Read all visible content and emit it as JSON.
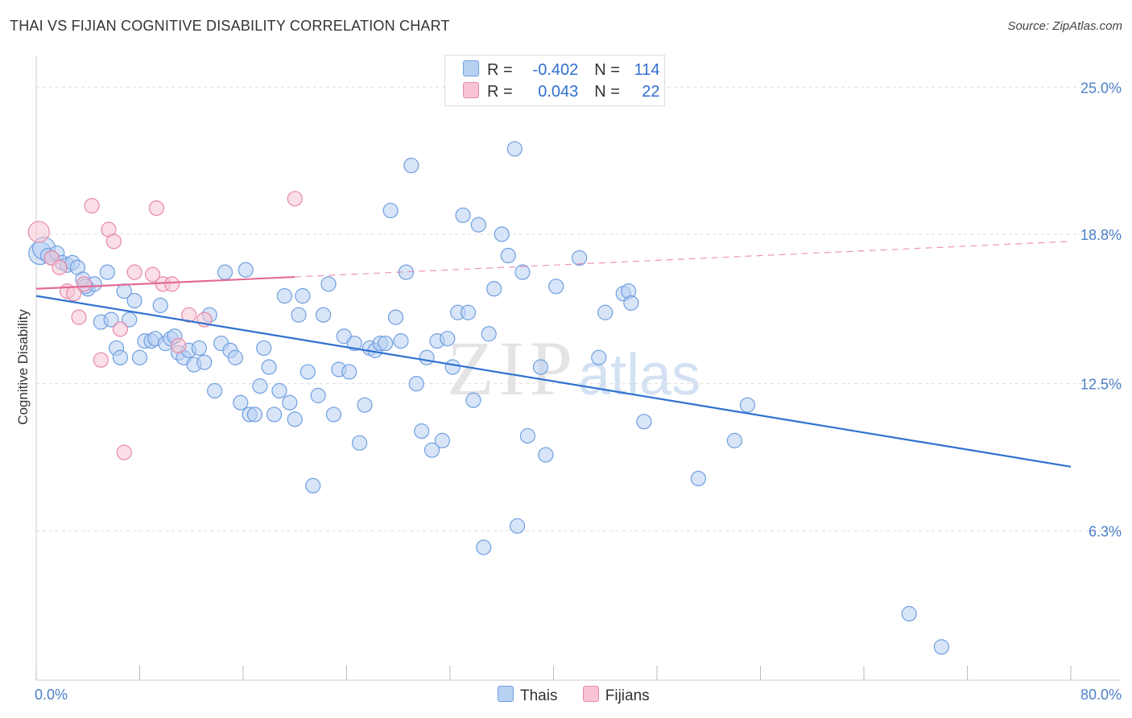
{
  "title": "THAI VS FIJIAN COGNITIVE DISABILITY CORRELATION CHART",
  "source": "Source: ZipAtlas.com",
  "watermark": {
    "zip": "ZIP",
    "atlas": "atlas"
  },
  "legend": {
    "rows": [
      {
        "r_label": "R =",
        "r_value": "-0.402",
        "n_label": "N =",
        "n_value": "114",
        "color": "#b8d0f2",
        "border": "#6f9fe0"
      },
      {
        "r_label": "R =",
        "r_value": "0.043",
        "n_label": "N =",
        "n_value": "22",
        "color": "#f8c4d4",
        "border": "#e888a8"
      }
    ]
  },
  "bottom_legend": [
    {
      "label": "Thais",
      "color": "#b8d0f2",
      "border": "#6f9fe0"
    },
    {
      "label": "Fijians",
      "color": "#f8c4d4",
      "border": "#e888a8"
    }
  ],
  "chart_data": {
    "type": "scatter",
    "title": "THAI VS FIJIAN COGNITIVE DISABILITY CORRELATION CHART",
    "xlabel": "",
    "ylabel": "Cognitive Disability",
    "xlim": [
      0,
      80
    ],
    "ylim": [
      0,
      26.3
    ],
    "x_tick_labels": [
      "0.0%",
      "80.0%"
    ],
    "y_ticks": [
      6.3,
      12.5,
      18.8,
      25.0
    ],
    "y_tick_labels": [
      "6.3%",
      "12.5%",
      "18.8%",
      "25.0%"
    ],
    "grid": true,
    "legend_position": "top-center",
    "series": [
      {
        "name": "Thais",
        "color": "#6f9fe0",
        "fill": "#b8d0f2",
        "trend": {
          "x": [
            0,
            80
          ],
          "y": [
            16.2,
            9.0
          ],
          "style": "solid",
          "color": "#2f72d0"
        },
        "points": [
          [
            0.3,
            18.0
          ],
          [
            0.6,
            18.2
          ],
          [
            0.9,
            17.9
          ],
          [
            1.2,
            17.8
          ],
          [
            1.6,
            18.0
          ],
          [
            2.0,
            17.6
          ],
          [
            2.4,
            17.5
          ],
          [
            2.8,
            17.6
          ],
          [
            3.2,
            17.4
          ],
          [
            3.6,
            16.9
          ],
          [
            4.0,
            16.5
          ],
          [
            4.5,
            16.7
          ],
          [
            5.0,
            15.1
          ],
          [
            5.5,
            17.2
          ],
          [
            5.8,
            15.2
          ],
          [
            6.2,
            14.0
          ],
          [
            6.5,
            13.6
          ],
          [
            6.8,
            16.4
          ],
          [
            7.2,
            15.2
          ],
          [
            7.6,
            16.0
          ],
          [
            8.0,
            13.6
          ],
          [
            8.4,
            14.3
          ],
          [
            8.9,
            14.3
          ],
          [
            9.2,
            14.4
          ],
          [
            9.6,
            15.8
          ],
          [
            10.0,
            14.2
          ],
          [
            10.4,
            14.4
          ],
          [
            10.7,
            14.5
          ],
          [
            11.0,
            13.8
          ],
          [
            11.4,
            13.6
          ],
          [
            11.8,
            13.9
          ],
          [
            12.2,
            13.3
          ],
          [
            12.6,
            14.0
          ],
          [
            13.0,
            13.4
          ],
          [
            13.4,
            15.4
          ],
          [
            13.8,
            12.2
          ],
          [
            14.3,
            14.2
          ],
          [
            14.6,
            17.2
          ],
          [
            15.0,
            13.9
          ],
          [
            15.4,
            13.6
          ],
          [
            15.8,
            11.7
          ],
          [
            16.2,
            17.3
          ],
          [
            16.5,
            11.2
          ],
          [
            16.9,
            11.2
          ],
          [
            17.3,
            12.4
          ],
          [
            17.6,
            14.0
          ],
          [
            18.0,
            13.2
          ],
          [
            18.4,
            11.2
          ],
          [
            18.8,
            12.2
          ],
          [
            19.2,
            16.2
          ],
          [
            19.6,
            11.7
          ],
          [
            20.0,
            11.0
          ],
          [
            20.3,
            15.4
          ],
          [
            20.6,
            16.2
          ],
          [
            21.0,
            13.0
          ],
          [
            21.4,
            8.2
          ],
          [
            21.8,
            12.0
          ],
          [
            22.2,
            15.4
          ],
          [
            22.6,
            16.7
          ],
          [
            23.0,
            11.2
          ],
          [
            23.4,
            13.1
          ],
          [
            23.8,
            14.5
          ],
          [
            24.2,
            13.0
          ],
          [
            24.6,
            14.2
          ],
          [
            25.0,
            10.0
          ],
          [
            25.4,
            11.6
          ],
          [
            25.8,
            14.0
          ],
          [
            26.2,
            13.9
          ],
          [
            26.6,
            14.2
          ],
          [
            27.0,
            14.2
          ],
          [
            27.4,
            19.8
          ],
          [
            27.8,
            15.3
          ],
          [
            28.2,
            14.3
          ],
          [
            28.6,
            17.2
          ],
          [
            29.0,
            21.7
          ],
          [
            29.4,
            12.5
          ],
          [
            29.8,
            10.5
          ],
          [
            30.2,
            13.6
          ],
          [
            30.6,
            9.7
          ],
          [
            31.0,
            14.3
          ],
          [
            31.4,
            10.1
          ],
          [
            31.8,
            14.4
          ],
          [
            32.2,
            13.2
          ],
          [
            32.6,
            15.5
          ],
          [
            33.0,
            19.6
          ],
          [
            33.4,
            15.5
          ],
          [
            33.8,
            11.8
          ],
          [
            34.2,
            19.2
          ],
          [
            34.6,
            5.6
          ],
          [
            35.0,
            14.6
          ],
          [
            35.4,
            16.5
          ],
          [
            36.0,
            18.8
          ],
          [
            36.5,
            17.9
          ],
          [
            37.0,
            22.4
          ],
          [
            37.2,
            6.5
          ],
          [
            37.6,
            17.2
          ],
          [
            38.0,
            10.3
          ],
          [
            39.0,
            13.2
          ],
          [
            39.4,
            9.5
          ],
          [
            40.2,
            16.6
          ],
          [
            42.0,
            17.8
          ],
          [
            43.5,
            13.6
          ],
          [
            44.0,
            15.5
          ],
          [
            45.4,
            16.3
          ],
          [
            45.8,
            16.4
          ],
          [
            46.0,
            15.9
          ],
          [
            47.0,
            10.9
          ],
          [
            51.2,
            8.5
          ],
          [
            54.0,
            10.1
          ],
          [
            55.0,
            11.6
          ],
          [
            67.5,
            2.8
          ],
          [
            70.0,
            1.4
          ],
          [
            3.8,
            16.6
          ]
        ]
      },
      {
        "name": "Fijians",
        "color": "#e888a8",
        "fill": "#f8c4d4",
        "trend": {
          "x": [
            0,
            80
          ],
          "y": [
            16.5,
            18.5
          ],
          "style": "solid-then-dashed",
          "solid_until": 20,
          "color": "#e36b96"
        },
        "points": [
          [
            0.2,
            18.9
          ],
          [
            1.2,
            17.8
          ],
          [
            1.8,
            17.4
          ],
          [
            2.4,
            16.4
          ],
          [
            2.9,
            16.3
          ],
          [
            3.3,
            15.3
          ],
          [
            3.7,
            16.7
          ],
          [
            4.3,
            20.0
          ],
          [
            5.0,
            13.5
          ],
          [
            5.6,
            19.0
          ],
          [
            6.0,
            18.5
          ],
          [
            6.5,
            14.8
          ],
          [
            6.8,
            9.6
          ],
          [
            7.6,
            17.2
          ],
          [
            9.0,
            17.1
          ],
          [
            9.3,
            19.9
          ],
          [
            9.8,
            16.7
          ],
          [
            10.5,
            16.7
          ],
          [
            11.0,
            14.1
          ],
          [
            11.8,
            15.4
          ],
          [
            13.0,
            15.2
          ],
          [
            20.0,
            20.3
          ]
        ]
      }
    ]
  }
}
